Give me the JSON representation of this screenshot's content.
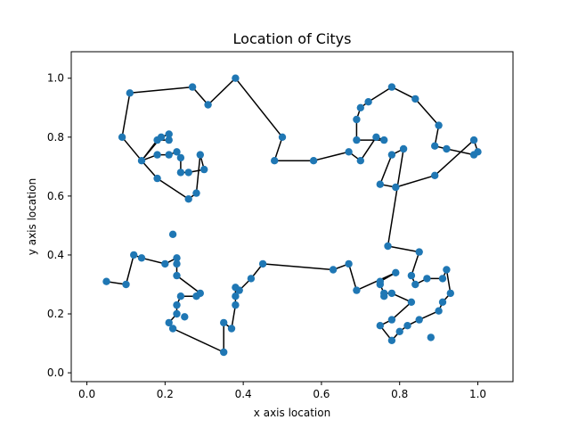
{
  "chart_data": {
    "type": "scatter",
    "title": "Location of Citys",
    "xlabel": "x axis location",
    "ylabel": "y axis location",
    "xlim": [
      -0.04,
      1.09
    ],
    "ylim": [
      -0.03,
      1.09
    ],
    "xticks": [
      "0.0",
      "0.2",
      "0.4",
      "0.6",
      "0.8",
      "1.0"
    ],
    "yticks": [
      "0.0",
      "0.2",
      "0.4",
      "0.6",
      "0.8",
      "1.0"
    ],
    "grid": false,
    "colors": {
      "points": "#1f77b4",
      "route": "#000000"
    },
    "route": [
      [
        0.11,
        0.95
      ],
      [
        0.27,
        0.97
      ],
      [
        0.31,
        0.91
      ],
      [
        0.38,
        1.0
      ],
      [
        0.5,
        0.8
      ],
      [
        0.48,
        0.72
      ],
      [
        0.58,
        0.72
      ],
      [
        0.67,
        0.75
      ],
      [
        0.7,
        0.72
      ],
      [
        0.74,
        0.8
      ],
      [
        0.76,
        0.79
      ],
      [
        0.69,
        0.79
      ],
      [
        0.69,
        0.86
      ],
      [
        0.7,
        0.9
      ],
      [
        0.72,
        0.92
      ],
      [
        0.78,
        0.97
      ],
      [
        0.84,
        0.93
      ],
      [
        0.9,
        0.84
      ],
      [
        0.89,
        0.77
      ],
      [
        0.92,
        0.76
      ],
      [
        0.99,
        0.74
      ],
      [
        1.0,
        0.75
      ],
      [
        0.99,
        0.79
      ],
      [
        0.89,
        0.67
      ],
      [
        0.79,
        0.63
      ],
      [
        0.75,
        0.64
      ],
      [
        0.78,
        0.74
      ],
      [
        0.81,
        0.76
      ],
      [
        0.77,
        0.43
      ],
      [
        0.85,
        0.41
      ],
      [
        0.83,
        0.33
      ],
      [
        0.84,
        0.3
      ],
      [
        0.87,
        0.32
      ],
      [
        0.91,
        0.32
      ],
      [
        0.92,
        0.35
      ],
      [
        0.93,
        0.27
      ],
      [
        0.91,
        0.24
      ],
      [
        0.9,
        0.21
      ],
      [
        0.85,
        0.18
      ],
      [
        0.82,
        0.16
      ],
      [
        0.8,
        0.14
      ],
      [
        0.78,
        0.11
      ],
      [
        0.75,
        0.16
      ],
      [
        0.78,
        0.18
      ],
      [
        0.83,
        0.24
      ],
      [
        0.78,
        0.27
      ],
      [
        0.76,
        0.27
      ],
      [
        0.75,
        0.3
      ],
      [
        0.75,
        0.31
      ],
      [
        0.79,
        0.34
      ],
      [
        0.69,
        0.28
      ],
      [
        0.67,
        0.37
      ],
      [
        0.63,
        0.35
      ],
      [
        0.45,
        0.37
      ],
      [
        0.42,
        0.32
      ],
      [
        0.39,
        0.28
      ],
      [
        0.38,
        0.29
      ],
      [
        0.38,
        0.26
      ],
      [
        0.38,
        0.23
      ],
      [
        0.37,
        0.15
      ],
      [
        0.35,
        0.17
      ],
      [
        0.35,
        0.07
      ],
      [
        0.22,
        0.15
      ],
      [
        0.21,
        0.17
      ],
      [
        0.23,
        0.2
      ],
      [
        0.23,
        0.23
      ],
      [
        0.24,
        0.26
      ],
      [
        0.28,
        0.26
      ],
      [
        0.29,
        0.27
      ],
      [
        0.23,
        0.33
      ],
      [
        0.23,
        0.37
      ],
      [
        0.23,
        0.39
      ],
      [
        0.2,
        0.37
      ],
      [
        0.14,
        0.39
      ],
      [
        0.12,
        0.4
      ],
      [
        0.1,
        0.3
      ],
      [
        0.05,
        0.31
      ]
    ],
    "route_upper_left": [
      [
        0.09,
        0.8
      ],
      [
        0.11,
        0.95
      ],
      [
        0.09,
        0.8
      ],
      [
        0.14,
        0.72
      ],
      [
        0.19,
        0.8
      ],
      [
        0.21,
        0.81
      ],
      [
        0.21,
        0.79
      ],
      [
        0.18,
        0.79
      ],
      [
        0.14,
        0.72
      ],
      [
        0.18,
        0.74
      ],
      [
        0.21,
        0.74
      ],
      [
        0.23,
        0.75
      ],
      [
        0.24,
        0.73
      ],
      [
        0.24,
        0.68
      ],
      [
        0.26,
        0.68
      ],
      [
        0.3,
        0.69
      ],
      [
        0.29,
        0.74
      ],
      [
        0.28,
        0.61
      ],
      [
        0.26,
        0.59
      ],
      [
        0.18,
        0.66
      ],
      [
        0.14,
        0.72
      ]
    ],
    "points": [
      [
        0.05,
        0.31
      ],
      [
        0.1,
        0.3
      ],
      [
        0.12,
        0.4
      ],
      [
        0.14,
        0.39
      ],
      [
        0.2,
        0.37
      ],
      [
        0.22,
        0.47
      ],
      [
        0.23,
        0.39
      ],
      [
        0.23,
        0.37
      ],
      [
        0.23,
        0.33
      ],
      [
        0.24,
        0.26
      ],
      [
        0.23,
        0.23
      ],
      [
        0.23,
        0.2
      ],
      [
        0.21,
        0.17
      ],
      [
        0.22,
        0.15
      ],
      [
        0.25,
        0.19
      ],
      [
        0.28,
        0.26
      ],
      [
        0.29,
        0.27
      ],
      [
        0.35,
        0.07
      ],
      [
        0.35,
        0.17
      ],
      [
        0.37,
        0.15
      ],
      [
        0.38,
        0.23
      ],
      [
        0.38,
        0.26
      ],
      [
        0.38,
        0.29
      ],
      [
        0.39,
        0.28
      ],
      [
        0.42,
        0.32
      ],
      [
        0.45,
        0.37
      ],
      [
        0.63,
        0.35
      ],
      [
        0.67,
        0.37
      ],
      [
        0.69,
        0.28
      ],
      [
        0.75,
        0.3
      ],
      [
        0.75,
        0.31
      ],
      [
        0.76,
        0.27
      ],
      [
        0.76,
        0.26
      ],
      [
        0.78,
        0.27
      ],
      [
        0.79,
        0.34
      ],
      [
        0.83,
        0.24
      ],
      [
        0.78,
        0.18
      ],
      [
        0.75,
        0.16
      ],
      [
        0.78,
        0.11
      ],
      [
        0.8,
        0.14
      ],
      [
        0.82,
        0.16
      ],
      [
        0.85,
        0.18
      ],
      [
        0.88,
        0.12
      ],
      [
        0.9,
        0.21
      ],
      [
        0.91,
        0.24
      ],
      [
        0.93,
        0.27
      ],
      [
        0.92,
        0.35
      ],
      [
        0.91,
        0.32
      ],
      [
        0.87,
        0.32
      ],
      [
        0.84,
        0.3
      ],
      [
        0.83,
        0.33
      ],
      [
        0.85,
        0.41
      ],
      [
        0.77,
        0.43
      ],
      [
        0.81,
        0.76
      ],
      [
        0.78,
        0.74
      ],
      [
        0.75,
        0.64
      ],
      [
        0.79,
        0.63
      ],
      [
        0.89,
        0.67
      ],
      [
        0.99,
        0.79
      ],
      [
        1.0,
        0.75
      ],
      [
        0.99,
        0.74
      ],
      [
        0.92,
        0.76
      ],
      [
        0.89,
        0.77
      ],
      [
        0.9,
        0.84
      ],
      [
        0.84,
        0.93
      ],
      [
        0.78,
        0.97
      ],
      [
        0.72,
        0.92
      ],
      [
        0.7,
        0.9
      ],
      [
        0.69,
        0.86
      ],
      [
        0.69,
        0.79
      ],
      [
        0.74,
        0.8
      ],
      [
        0.76,
        0.79
      ],
      [
        0.7,
        0.72
      ],
      [
        0.67,
        0.75
      ],
      [
        0.58,
        0.72
      ],
      [
        0.48,
        0.72
      ],
      [
        0.5,
        0.8
      ],
      [
        0.38,
        1.0
      ],
      [
        0.31,
        0.91
      ],
      [
        0.27,
        0.97
      ],
      [
        0.11,
        0.95
      ],
      [
        0.09,
        0.8
      ],
      [
        0.14,
        0.72
      ],
      [
        0.18,
        0.74
      ],
      [
        0.18,
        0.79
      ],
      [
        0.19,
        0.8
      ],
      [
        0.21,
        0.81
      ],
      [
        0.21,
        0.79
      ],
      [
        0.21,
        0.74
      ],
      [
        0.23,
        0.75
      ],
      [
        0.24,
        0.73
      ],
      [
        0.24,
        0.68
      ],
      [
        0.26,
        0.68
      ],
      [
        0.29,
        0.74
      ],
      [
        0.3,
        0.69
      ],
      [
        0.28,
        0.61
      ],
      [
        0.26,
        0.59
      ],
      [
        0.18,
        0.66
      ]
    ]
  }
}
